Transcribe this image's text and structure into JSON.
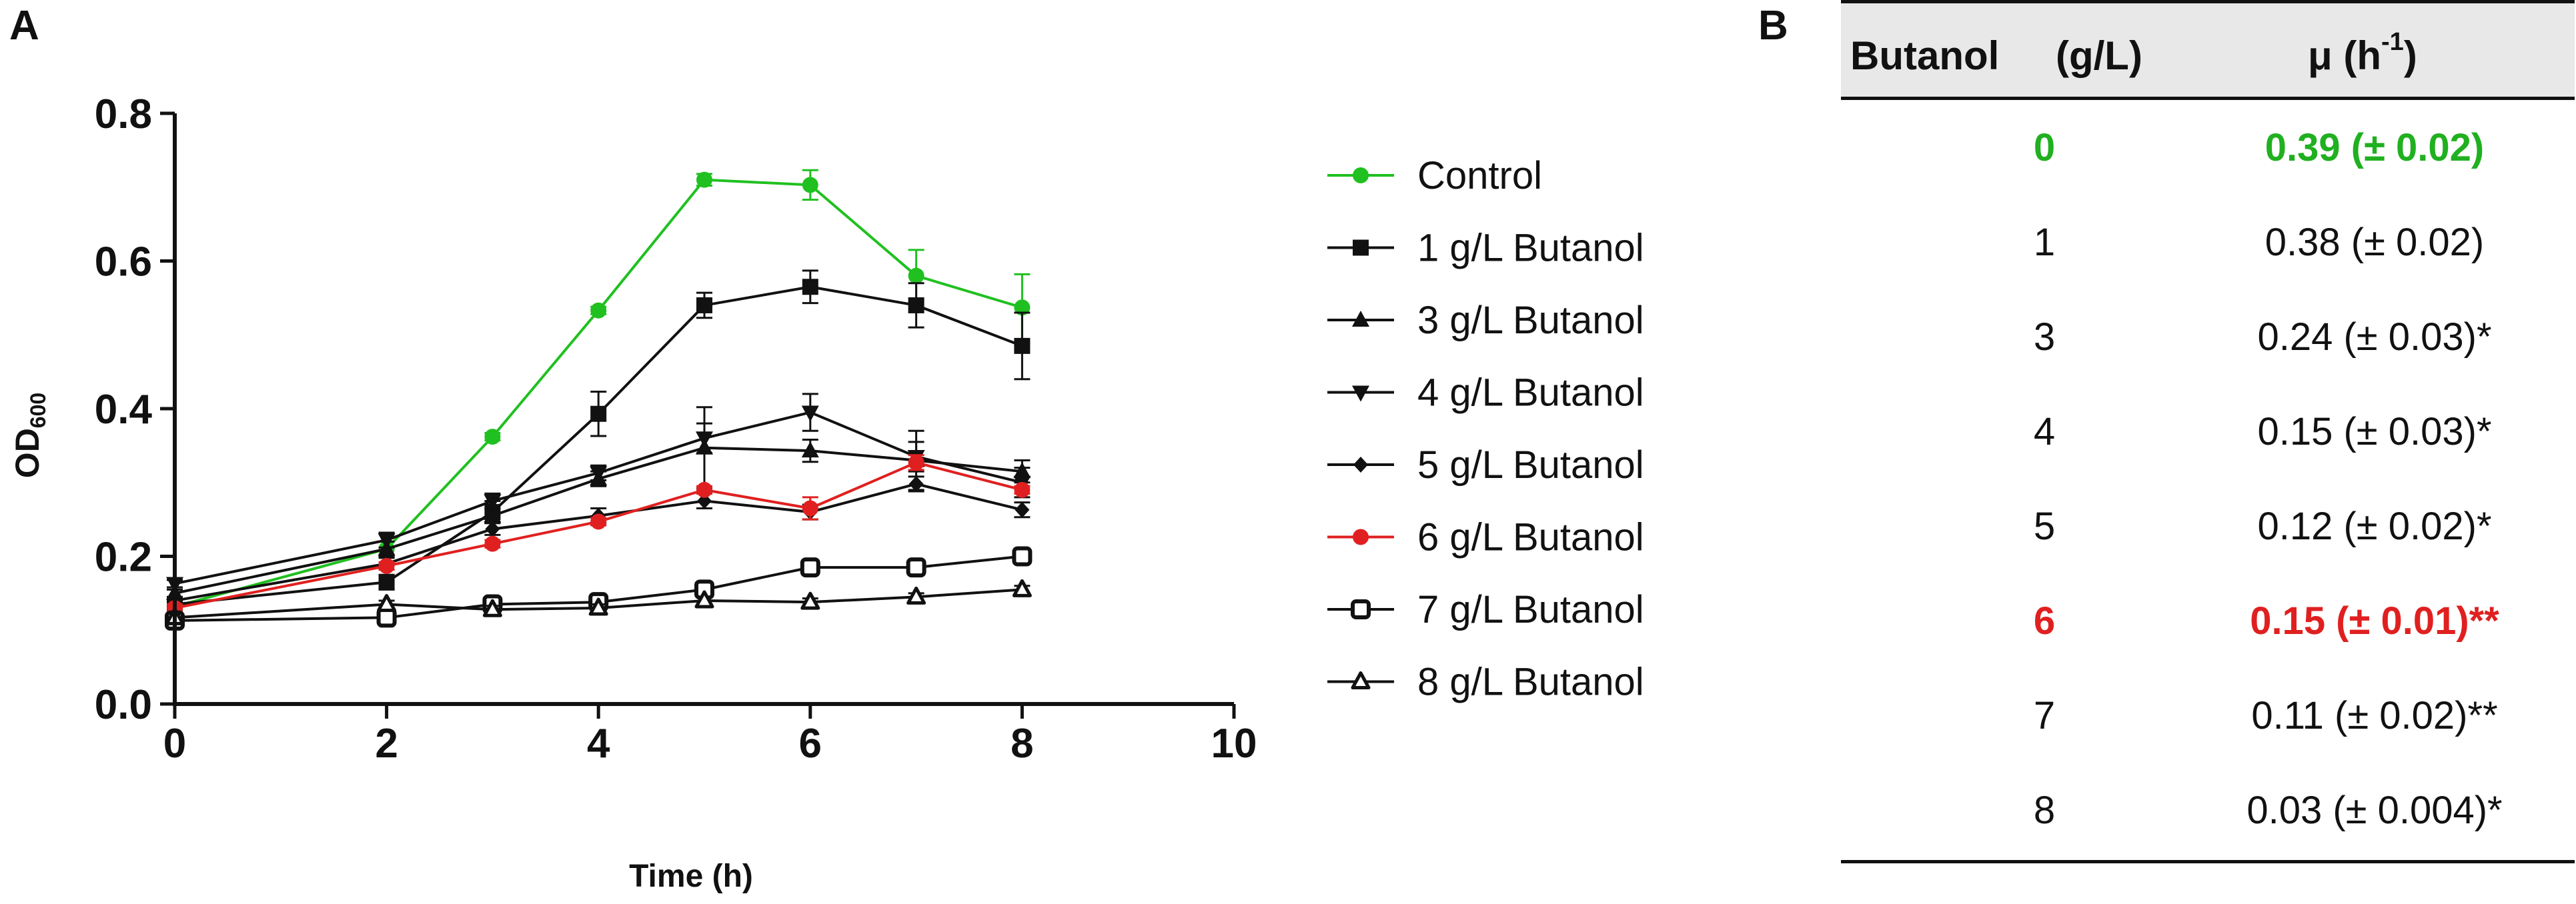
{
  "panels": {
    "a": "A",
    "b": "B"
  },
  "chart_data": {
    "type": "line",
    "xlabel": "Time (h)",
    "ylabel": "OD",
    "ylabel_sub": "600",
    "xlim": [
      0,
      10
    ],
    "ylim": [
      0,
      0.8
    ],
    "x_ticks": [
      0,
      2,
      4,
      6,
      8,
      10
    ],
    "x_tick_labels": [
      "0",
      "2",
      "4",
      "6",
      "8",
      "10"
    ],
    "y_ticks": [
      0.0,
      0.2,
      0.4,
      0.6,
      0.8
    ],
    "y_tick_labels": [
      "0.0",
      "0.2",
      "0.4",
      "0.6",
      "0.8"
    ],
    "x": [
      0,
      2,
      3,
      4,
      5,
      6,
      7,
      8
    ],
    "series": [
      {
        "name": "Control",
        "color": "#20c020",
        "marker": "circle",
        "values": [
          0.132,
          0.21,
          0.362,
          0.533,
          0.71,
          0.703,
          0.58,
          0.537
        ],
        "errors": [
          0.005,
          0.01,
          0.005,
          0.005,
          0.008,
          0.02,
          0.035,
          0.045
        ]
      },
      {
        "name": "1 g/L Butanol",
        "color": "#111111",
        "marker": "square",
        "values": [
          0.135,
          0.165,
          0.26,
          0.393,
          0.54,
          0.565,
          0.54,
          0.485
        ],
        "errors": [
          0.005,
          0.01,
          0.015,
          0.03,
          0.017,
          0.022,
          0.03,
          0.045
        ]
      },
      {
        "name": "3 g/L Butanol",
        "color": "#111111",
        "marker": "triangle-up",
        "values": [
          0.15,
          0.21,
          0.255,
          0.305,
          0.347,
          0.343,
          0.33,
          0.315
        ],
        "errors": [
          0.005,
          0.01,
          0.01,
          0.01,
          0.055,
          0.015,
          0.04,
          0.015
        ]
      },
      {
        "name": "4 g/L Butanol",
        "color": "#111111",
        "marker": "triangle-down",
        "values": [
          0.163,
          0.222,
          0.275,
          0.313,
          0.36,
          0.395,
          0.335,
          0.3
        ],
        "errors": [
          0.005,
          0.01,
          0.01,
          0.01,
          0.02,
          0.025,
          0.02,
          0.02
        ]
      },
      {
        "name": "5 g/L Butanol",
        "color": "#111111",
        "marker": "diamond",
        "values": [
          0.14,
          0.19,
          0.237,
          0.255,
          0.275,
          0.26,
          0.298,
          0.263
        ],
        "errors": [
          0.005,
          0.008,
          0.008,
          0.01,
          0.01,
          0.01,
          0.01,
          0.01
        ]
      },
      {
        "name": "6 g/L Butanol",
        "color": "#e02020",
        "marker": "circle",
        "values": [
          0.13,
          0.187,
          0.217,
          0.247,
          0.29,
          0.265,
          0.327,
          0.29
        ],
        "errors": [
          0.005,
          0.005,
          0.005,
          0.005,
          0.005,
          0.015,
          0.01,
          0.005
        ]
      },
      {
        "name": "7 g/L Butanol",
        "color": "#111111",
        "marker": "open-square",
        "values": [
          0.113,
          0.117,
          0.135,
          0.138,
          0.155,
          0.185,
          0.185,
          0.2
        ],
        "errors": [
          0.005,
          0.008,
          0.008,
          0.008,
          0.01,
          0.008,
          0.008,
          0.008
        ]
      },
      {
        "name": "8 g/L Butanol",
        "color": "#111111",
        "marker": "open-triangle",
        "values": [
          0.117,
          0.135,
          0.128,
          0.13,
          0.14,
          0.138,
          0.145,
          0.155
        ],
        "errors": [
          0.005,
          0.005,
          0.005,
          0.005,
          0.005,
          0.005,
          0.005,
          0.005
        ]
      }
    ]
  },
  "table": {
    "header": {
      "col1": "Butanol",
      "col2": "(g/L)",
      "col3": "μ (h",
      "col3_sup": "-1",
      "col3_end": ")"
    },
    "rows": [
      {
        "butanol": "0",
        "mu": "0.39 (± 0.02)",
        "color": "#20b020",
        "bold": true
      },
      {
        "butanol": "1",
        "mu": "0.38 (± 0.02)",
        "color": "#111111",
        "bold": false
      },
      {
        "butanol": "3",
        "mu": "0.24 (± 0.03)*",
        "color": "#111111",
        "bold": false
      },
      {
        "butanol": "4",
        "mu": "0.15 (± 0.03)*",
        "color": "#111111",
        "bold": false
      },
      {
        "butanol": "5",
        "mu": "0.12 (± 0.02)*",
        "color": "#111111",
        "bold": false
      },
      {
        "butanol": "6",
        "mu": "0.15 (± 0.01)**",
        "color": "#e02020",
        "bold": true
      },
      {
        "butanol": "7",
        "mu": "0.11 (± 0.02)**",
        "color": "#111111",
        "bold": false
      },
      {
        "butanol": "8",
        "mu": "0.03 (± 0.004)*",
        "color": "#111111",
        "bold": false
      }
    ]
  }
}
